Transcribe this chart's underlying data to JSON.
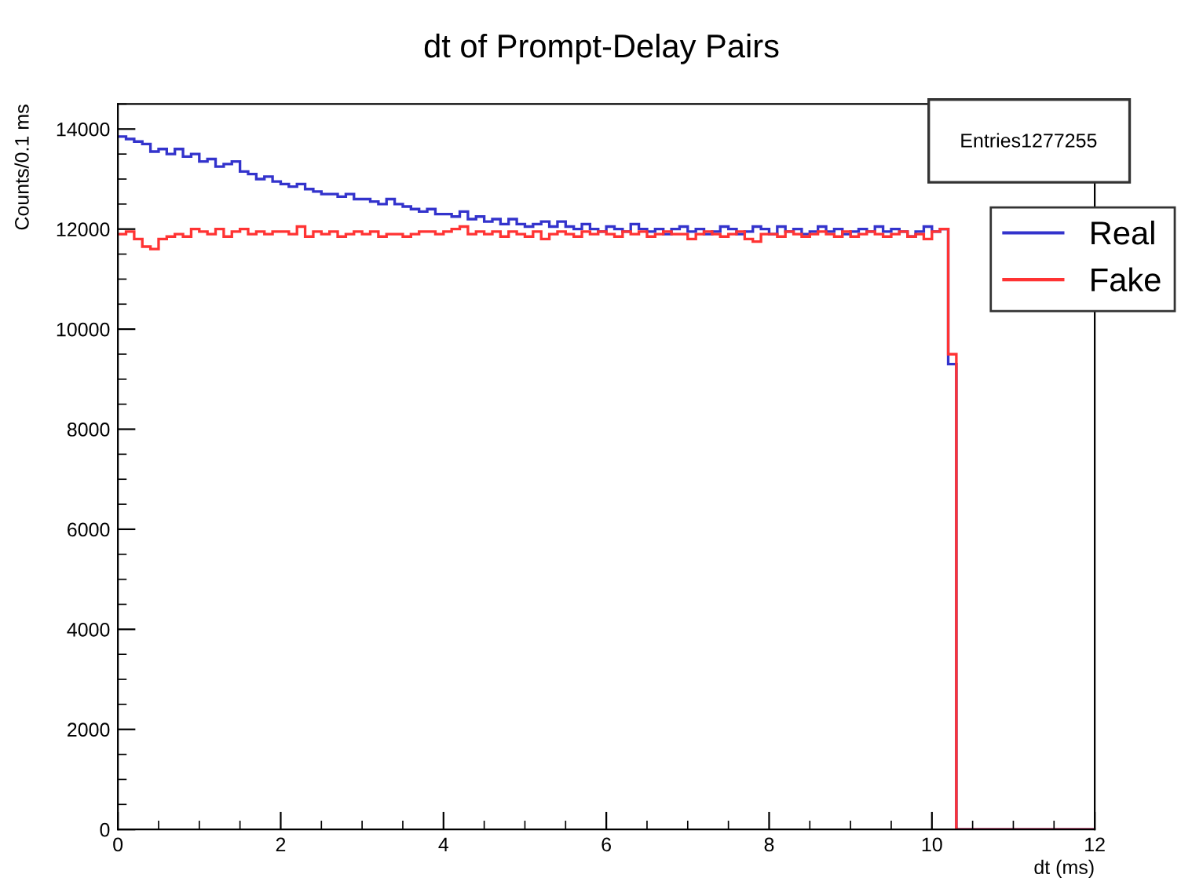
{
  "chart_data": {
    "type": "histogram",
    "title": "dt of Prompt-Delay Pairs",
    "xlabel": "dt (ms)",
    "ylabel": "Counts/0.1 ms",
    "bins": [
      0,
      0.1,
      0.2,
      0.3,
      0.4,
      0.5,
      0.6,
      0.7,
      0.8,
      0.9,
      1,
      1.1,
      1.2,
      1.3,
      1.4,
      1.5,
      1.6,
      1.7,
      1.8,
      1.9,
      2,
      2.1,
      2.2,
      2.3,
      2.4,
      2.5,
      2.6,
      2.7,
      2.8,
      2.9,
      3,
      3.1,
      3.2,
      3.3,
      3.4,
      3.5,
      3.6,
      3.7,
      3.8,
      3.9,
      4,
      4.1,
      4.2,
      4.3,
      4.4,
      4.5,
      4.6,
      4.7,
      4.8,
      4.9,
      5,
      5.1,
      5.2,
      5.3,
      5.4,
      5.5,
      5.6,
      5.7,
      5.8,
      5.9,
      6,
      6.1,
      6.2,
      6.3,
      6.4,
      6.5,
      6.6,
      6.7,
      6.8,
      6.9,
      7,
      7.1,
      7.2,
      7.3,
      7.4,
      7.5,
      7.6,
      7.7,
      7.8,
      7.9,
      8,
      8.1,
      8.2,
      8.3,
      8.4,
      8.5,
      8.6,
      8.7,
      8.8,
      8.9,
      9,
      9.1,
      9.2,
      9.3,
      9.4,
      9.5,
      9.6,
      9.7,
      9.8,
      9.9,
      10,
      10.1,
      10.2,
      10.3,
      12
    ],
    "series": [
      {
        "name": "Real",
        "color": "#3333cc",
        "values": [
          13850,
          13800,
          13750,
          13700,
          13550,
          13600,
          13500,
          13600,
          13450,
          13500,
          13350,
          13400,
          13250,
          13300,
          13350,
          13150,
          13100,
          13000,
          13050,
          12950,
          12900,
          12850,
          12900,
          12800,
          12750,
          12700,
          12700,
          12650,
          12700,
          12600,
          12600,
          12550,
          12500,
          12600,
          12500,
          12450,
          12400,
          12350,
          12400,
          12300,
          12300,
          12250,
          12350,
          12200,
          12250,
          12150,
          12200,
          12100,
          12200,
          12100,
          12050,
          12100,
          12150,
          12050,
          12150,
          12050,
          12000,
          12100,
          12000,
          11950,
          12050,
          12000,
          11950,
          12100,
          12000,
          11950,
          12000,
          11900,
          12000,
          12050,
          11950,
          12000,
          11900,
          11950,
          12050,
          12000,
          11900,
          11950,
          12050,
          12000,
          11900,
          12050,
          11950,
          12000,
          11900,
          11950,
          12050,
          11950,
          12000,
          11900,
          11950,
          12000,
          11950,
          12050,
          11950,
          12000,
          11950,
          11850,
          11950,
          12050,
          11950,
          12000,
          9300,
          0
        ]
      },
      {
        "name": "Fake",
        "color": "#ff3333",
        "values": [
          11900,
          11950,
          11800,
          11650,
          11600,
          11800,
          11850,
          11900,
          11850,
          12000,
          11950,
          11900,
          12000,
          11850,
          11950,
          12000,
          11900,
          11950,
          11900,
          11950,
          11950,
          11900,
          12050,
          11850,
          11950,
          11900,
          11950,
          11850,
          11900,
          11950,
          11900,
          11950,
          11850,
          11900,
          11900,
          11850,
          11900,
          11950,
          11950,
          11900,
          11950,
          12000,
          12050,
          11900,
          11950,
          11900,
          11950,
          11850,
          11950,
          11900,
          11850,
          11950,
          11800,
          11900,
          11950,
          11900,
          11850,
          11950,
          11900,
          11950,
          11900,
          11850,
          11950,
          11900,
          11950,
          11850,
          11900,
          11950,
          11900,
          11900,
          11800,
          11900,
          11950,
          11900,
          11850,
          11900,
          11950,
          11800,
          11750,
          11900,
          11900,
          11850,
          11950,
          11900,
          11850,
          11900,
          11950,
          11900,
          11850,
          11950,
          11850,
          11900,
          11950,
          11900,
          11850,
          11900,
          11950,
          11850,
          11900,
          11800,
          11950,
          12000,
          9500,
          0
        ]
      }
    ],
    "xlim": [
      0,
      12
    ],
    "xticks": [
      0,
      2,
      4,
      6,
      8,
      10,
      12
    ],
    "ylim": [
      0,
      14500
    ],
    "yticks": [
      0,
      2000,
      4000,
      6000,
      8000,
      10000,
      12000,
      14000
    ],
    "annotations": [
      "Entries1277255"
    ],
    "legend": "top right",
    "grid": false
  }
}
